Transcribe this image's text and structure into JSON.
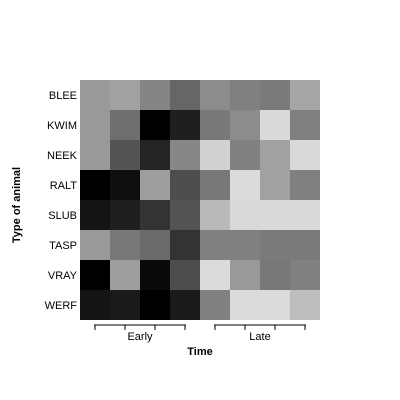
{
  "chart_data": {
    "type": "heatmap",
    "title": "",
    "xlabel": "Time",
    "ylabel": "Type of animal",
    "rows": [
      "BLEE",
      "KWIM",
      "NEEK",
      "RALT",
      "SLUB",
      "TASP",
      "VRAY",
      "WERF"
    ],
    "column_groups": [
      {
        "label": "Early",
        "columns": 4
      },
      {
        "label": "Late",
        "columns": 4
      }
    ],
    "color_scale": {
      "low": "#000000",
      "high": "#ffffff",
      "value_range": [
        0,
        1
      ]
    },
    "legend": "none",
    "grid": false,
    "values": [
      [
        0.6,
        0.63,
        0.52,
        0.4,
        0.55,
        0.5,
        0.48,
        0.65
      ],
      [
        0.6,
        0.43,
        0.0,
        0.12,
        0.47,
        0.55,
        0.85,
        0.5
      ],
      [
        0.6,
        0.33,
        0.14,
        0.53,
        0.82,
        0.5,
        0.63,
        0.85
      ],
      [
        0.0,
        0.06,
        0.62,
        0.3,
        0.47,
        0.86,
        0.63,
        0.5
      ],
      [
        0.08,
        0.12,
        0.2,
        0.33,
        0.73,
        0.85,
        0.85,
        0.85
      ],
      [
        0.6,
        0.47,
        0.42,
        0.2,
        0.5,
        0.5,
        0.48,
        0.48
      ],
      [
        0.0,
        0.62,
        0.04,
        0.3,
        0.86,
        0.6,
        0.47,
        0.5
      ],
      [
        0.08,
        0.1,
        0.0,
        0.1,
        0.5,
        0.86,
        0.86,
        0.74
      ]
    ]
  }
}
